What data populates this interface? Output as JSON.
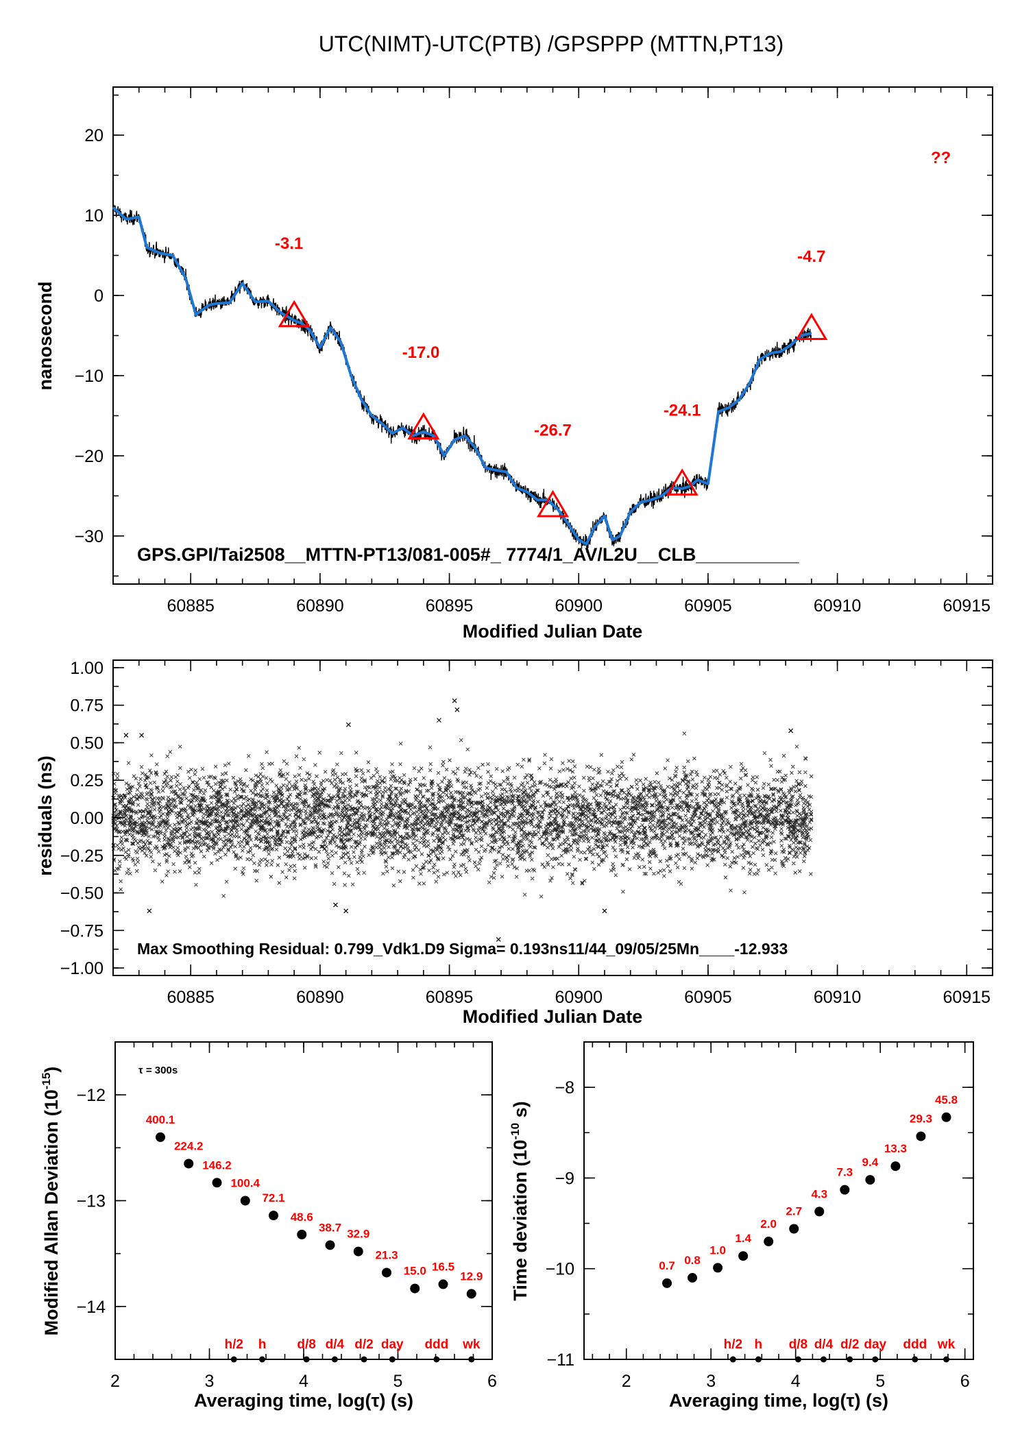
{
  "chart_data": [
    {
      "type": "line",
      "title": "UTC(NIMT)-UTC(PTB)  /GPSPPP  (MTTN,PT13)",
      "xlabel": "Modified Julian Date",
      "ylabel": "nanosecond",
      "xlim": [
        60882,
        60916
      ],
      "ylim": [
        -36,
        26
      ],
      "xticks": [
        60885,
        60890,
        60895,
        60900,
        60905,
        60910,
        60915
      ],
      "yticks": [
        20,
        10,
        0,
        -10,
        -20,
        -30
      ],
      "ytick_labels": [
        "20",
        "10",
        "0",
        "−10",
        "−20",
        "−30"
      ],
      "grid": false,
      "series": [
        {
          "color": "#1f77d4",
          "x": [
            60882.0,
            60882.5,
            60883.0,
            60883.3,
            60883.8,
            60884.3,
            60884.8,
            60885.2,
            60885.7,
            60886.0,
            60886.5,
            60887.0,
            60887.5,
            60888.0,
            60888.5,
            60889.0,
            60889.3,
            60889.6,
            60890.0,
            60890.4,
            60890.8,
            60891.2,
            60891.6,
            60892.0,
            60892.4,
            60892.8,
            60893.2,
            60893.6,
            60894.0,
            60894.4,
            60894.8,
            60895.2,
            60895.6,
            60896.0,
            60896.4,
            60896.8,
            60897.2,
            60897.6,
            60898.0,
            60898.4,
            60898.8,
            60899.2,
            60899.6,
            60900.0,
            60900.3,
            60900.6,
            60901.0,
            60901.3,
            60901.6,
            60902.0,
            60902.4,
            60902.8,
            60903.2,
            60903.6,
            60904.0,
            60904.3,
            60904.6,
            60905.0,
            60905.4,
            60905.8,
            60906.2,
            60906.6,
            60907.0,
            60907.4,
            60907.8,
            60908.2,
            60908.6,
            60909.0
          ],
          "y": [
            11.0,
            9.5,
            9.8,
            6.0,
            5.3,
            5.0,
            2.2,
            -2.4,
            -1.2,
            -1.0,
            -0.9,
            1.5,
            -0.8,
            -0.7,
            -2.2,
            -3.1,
            -3.5,
            -4.3,
            -6.5,
            -4.0,
            -5.8,
            -10.0,
            -13.0,
            -15.0,
            -16.0,
            -17.2,
            -16.5,
            -17.5,
            -17.0,
            -17.5,
            -20.0,
            -18.0,
            -17.5,
            -19.0,
            -21.5,
            -21.8,
            -22.0,
            -24.0,
            -24.5,
            -25.5,
            -25.5,
            -26.7,
            -28.5,
            -30.5,
            -31.0,
            -29.0,
            -27.5,
            -30.5,
            -30.0,
            -27.0,
            -25.8,
            -25.5,
            -25.0,
            -24.0,
            -24.1,
            -23.8,
            -23.0,
            -23.5,
            -14.5,
            -14.0,
            -13.0,
            -11.0,
            -8.0,
            -7.2,
            -7.0,
            -6.2,
            -5.0,
            -4.7
          ]
        }
      ],
      "markers": {
        "shape": "triangle",
        "color": "#ff0000",
        "x": [
          60889,
          60894,
          60899,
          60904,
          60909
        ],
        "y": [
          -2.7,
          -16.7,
          -26.4,
          -23.7,
          -4.3
        ]
      },
      "annotations": [
        {
          "text": "-3.1",
          "x": 60888.8,
          "y": 5.8
        },
        {
          "text": "-17.0",
          "x": 60893.9,
          "y": -7.8
        },
        {
          "text": "-26.7",
          "x": 60899.0,
          "y": -17.5
        },
        {
          "text": "-24.1",
          "x": 60904.0,
          "y": -15.0
        },
        {
          "text": "-4.7",
          "x": 60909.0,
          "y": 4.2
        },
        {
          "text": "??",
          "x": 60914.0,
          "y": 16.5
        }
      ],
      "footer_text": "GPS.GPI/Tai2508__MTTN-PT13/081-005#_  7774/1_AV/L2U__CLB__________"
    },
    {
      "type": "scatter",
      "xlabel": "Modified Julian Date",
      "ylabel": "residuals (ns)",
      "xlim": [
        60882,
        60916
      ],
      "ylim": [
        -1.05,
        1.05
      ],
      "xticks": [
        60885,
        60890,
        60895,
        60900,
        60905,
        60910,
        60915
      ],
      "yticks": [
        1.0,
        0.75,
        0.5,
        0.25,
        0.0,
        -0.25,
        -0.5,
        -0.75,
        -1.0
      ],
      "ytick_labels": [
        "1.00",
        "0.75",
        "0.50",
        "0.25",
        "0.00",
        "−0.25",
        "−0.50",
        "−0.75",
        "−1.00"
      ],
      "grid": false,
      "marker": "x",
      "x_range_of_points": [
        60882,
        60909
      ],
      "sigma": 0.193,
      "max_residual": 0.799,
      "outliers": [
        {
          "x": 60882.5,
          "y": 0.55
        },
        {
          "x": 60883.1,
          "y": 0.55
        },
        {
          "x": 60883.4,
          "y": -0.62
        },
        {
          "x": 60891.1,
          "y": 0.62
        },
        {
          "x": 60894.6,
          "y": 0.65
        },
        {
          "x": 60895.2,
          "y": 0.78
        },
        {
          "x": 60895.3,
          "y": 0.72
        },
        {
          "x": 60896.9,
          "y": -0.81
        },
        {
          "x": 60891.0,
          "y": -0.62
        },
        {
          "x": 60901.0,
          "y": -0.62
        },
        {
          "x": 60908.2,
          "y": 0.58
        },
        {
          "x": 60890.6,
          "y": -0.58
        }
      ],
      "footer_text": "Max Smoothing Residual: 0.799_Vdk1.D9  Sigma= 0.193ns11/44_09/05/25Mn____-12.933"
    },
    {
      "type": "scatter",
      "xlabel": "Averaging time, log(τ) (s)",
      "ylabel": "Modified Allan Deviation (10⁻¹⁵)",
      "ylabel_main": "Modified Allan Deviation (10",
      "ylabel_sup": "-15",
      "ylabel_end": ")",
      "xlim": [
        2,
        6
      ],
      "ylim": [
        -14.5,
        -11.5
      ],
      "xticks": [
        2,
        3,
        4,
        5,
        6
      ],
      "yticks": [
        -12,
        -13,
        -14
      ],
      "ytick_labels": [
        "−12",
        "−13",
        "−14"
      ],
      "tau_note": "τ = 300s",
      "x": [
        2.48,
        2.78,
        3.08,
        3.38,
        3.68,
        3.98,
        4.28,
        4.58,
        4.88,
        5.18,
        5.48,
        5.78
      ],
      "y": [
        -12.4,
        -12.65,
        -12.83,
        -13.0,
        -13.14,
        -13.32,
        -13.42,
        -13.48,
        -13.68,
        -13.83,
        -13.79,
        -13.88
      ],
      "labels": [
        "400.1",
        "224.2",
        "146.2",
        "100.4",
        "72.1",
        "48.6",
        "38.7",
        "32.9",
        "21.3",
        "15.0",
        "16.5",
        "12.9"
      ],
      "time_markers": [
        {
          "label": "h/2",
          "x": 3.26
        },
        {
          "label": "h",
          "x": 3.56
        },
        {
          "label": "d/8",
          "x": 4.03
        },
        {
          "label": "d/4",
          "x": 4.33
        },
        {
          "label": "d/2",
          "x": 4.64
        },
        {
          "label": "day",
          "x": 4.94
        },
        {
          "label": "ddd",
          "x": 5.41
        },
        {
          "label": "wk",
          "x": 5.78
        }
      ]
    },
    {
      "type": "scatter",
      "xlabel": "Averaging time, log(τ) (s)",
      "ylabel": "Time deviation (10⁻¹⁰ s)",
      "ylabel_main": "Time deviation (10",
      "ylabel_sup": "-10",
      "ylabel_end": " s)",
      "xlim": [
        1.5,
        6.1
      ],
      "ylim": [
        -11,
        -7.5
      ],
      "xticks": [
        2,
        3,
        4,
        5,
        6
      ],
      "yticks": [
        -8,
        -9,
        -10,
        -11
      ],
      "ytick_labels": [
        "−8",
        "−9",
        "−10",
        "−11"
      ],
      "x": [
        2.48,
        2.78,
        3.08,
        3.38,
        3.68,
        3.98,
        4.28,
        4.58,
        4.88,
        5.18,
        5.48,
        5.78
      ],
      "y": [
        -10.16,
        -10.1,
        -9.99,
        -9.86,
        -9.7,
        -9.56,
        -9.37,
        -9.13,
        -9.02,
        -8.87,
        -8.54,
        -8.33
      ],
      "labels": [
        "0.7",
        "0.8",
        "1.0",
        "1.4",
        "2.0",
        "2.7",
        "4.3",
        "7.3",
        "9.4",
        "13.3",
        "29.3",
        "45.8"
      ],
      "time_markers": [
        {
          "label": "h/2",
          "x": 3.26
        },
        {
          "label": "h",
          "x": 3.56
        },
        {
          "label": "d/8",
          "x": 4.03
        },
        {
          "label": "d/4",
          "x": 4.33
        },
        {
          "label": "d/2",
          "x": 4.64
        },
        {
          "label": "day",
          "x": 4.94
        },
        {
          "label": "ddd",
          "x": 5.41
        },
        {
          "label": "wk",
          "x": 5.78
        }
      ]
    }
  ]
}
